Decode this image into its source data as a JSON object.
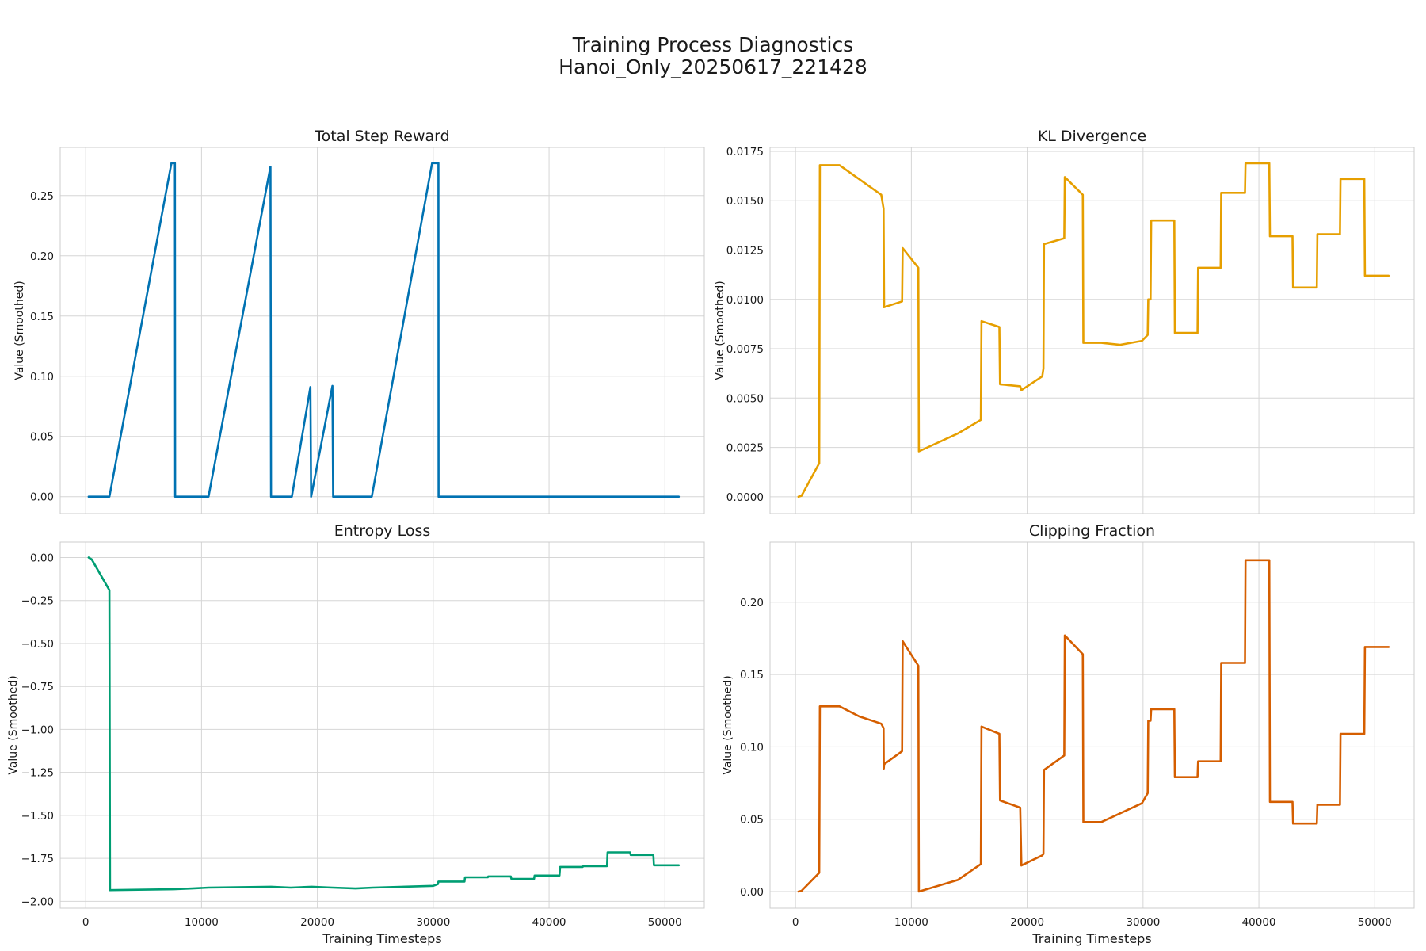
{
  "figure": {
    "title_line1": "Training Process Diagnostics",
    "title_line2": "Hanoi_Only_20250617_221428"
  },
  "chart_data": [
    {
      "type": "line",
      "title": "Total Step Reward",
      "xlabel": "",
      "ylabel": "Value (Smoothed)",
      "xlim": [
        -2200,
        53400
      ],
      "ylim": [
        -0.014,
        0.29
      ],
      "xticks": [
        0,
        10000,
        20000,
        30000,
        40000,
        50000
      ],
      "xtick_labels": [],
      "yticks": [
        0.0,
        0.05,
        0.1,
        0.15,
        0.2,
        0.25
      ],
      "ytick_labels": [
        "0.00",
        "0.05",
        "0.10",
        "0.15",
        "0.20",
        "0.25"
      ],
      "grid": true,
      "color": "#0072b2",
      "series": [
        {
          "x": [
            256,
            2048,
            7400,
            7450,
            7700,
            7720,
            10600,
            15950,
            16000,
            17800,
            19400,
            19460,
            21300,
            21360,
            24700,
            29900,
            29950,
            30450,
            30460,
            51200
          ],
          "y": [
            0,
            0,
            0.277,
            0.277,
            0.277,
            0,
            0,
            0.274,
            0,
            0,
            0.091,
            0,
            0.092,
            0,
            0,
            0.277,
            0.277,
            0.277,
            0,
            0
          ]
        }
      ]
    },
    {
      "type": "line",
      "title": "KL Divergence",
      "xlabel": "",
      "ylabel": "Value (Smoothed)",
      "xlim": [
        -2200,
        53400
      ],
      "ylim": [
        -0.00085,
        0.0177
      ],
      "xticks": [
        0,
        10000,
        20000,
        30000,
        40000,
        50000
      ],
      "xtick_labels": [],
      "yticks": [
        0.0,
        0.0025,
        0.005,
        0.0075,
        0.01,
        0.0125,
        0.015,
        0.0175
      ],
      "ytick_labels": [
        "0.0000",
        "0.0025",
        "0.0050",
        "0.0075",
        "0.0100",
        "0.0125",
        "0.0150",
        "0.0175"
      ],
      "grid": true,
      "color": "#e69f00",
      "series": [
        {
          "x": [
            256,
            512,
            2048,
            2100,
            3800,
            7400,
            7600,
            7650,
            9200,
            9250,
            10600,
            10650,
            14000,
            16000,
            16050,
            17600,
            17650,
            19400,
            19500,
            21300,
            21400,
            21450,
            23200,
            23250,
            24800,
            24850,
            26400,
            28000,
            29900,
            30400,
            30450,
            30650,
            30700,
            32700,
            32750,
            34700,
            34750,
            36700,
            36750,
            38800,
            38850,
            40900,
            40950,
            42900,
            42950,
            45000,
            45050,
            47000,
            47050,
            49100,
            49150,
            51200
          ],
          "y": [
            0,
            5e-05,
            0.0017,
            0.0168,
            0.0168,
            0.0153,
            0.0146,
            0.0096,
            0.0099,
            0.0126,
            0.0116,
            0.0023,
            0.0032,
            0.0039,
            0.0089,
            0.0086,
            0.0057,
            0.0056,
            0.0054,
            0.0061,
            0.0065,
            0.0128,
            0.0131,
            0.0162,
            0.0153,
            0.0078,
            0.0078,
            0.0077,
            0.0079,
            0.0082,
            0.01,
            0.01,
            0.014,
            0.014,
            0.0083,
            0.0083,
            0.0116,
            0.0116,
            0.0154,
            0.0154,
            0.0169,
            0.0169,
            0.0132,
            0.0132,
            0.0106,
            0.0106,
            0.0133,
            0.0133,
            0.0161,
            0.0161,
            0.0112,
            0.0112
          ]
        }
      ]
    },
    {
      "type": "line",
      "title": "Entropy Loss",
      "xlabel": "Training Timesteps",
      "ylabel": "Value (Smoothed)",
      "xlim": [
        -2200,
        53400
      ],
      "ylim": [
        -2.04,
        0.09
      ],
      "xticks": [
        0,
        10000,
        20000,
        30000,
        40000,
        50000
      ],
      "xtick_labels": [
        "0",
        "10000",
        "20000",
        "30000",
        "40000",
        "50000"
      ],
      "yticks": [
        -2.0,
        -1.75,
        -1.5,
        -1.25,
        -1.0,
        -0.75,
        -0.5,
        -0.25,
        0.0
      ],
      "ytick_labels": [
        "−2.00",
        "−1.75",
        "−1.50",
        "−1.25",
        "−1.00",
        "−0.75",
        "−0.50",
        "−0.25",
        "0.00"
      ],
      "grid": true,
      "color": "#009e73",
      "series": [
        {
          "x": [
            256,
            512,
            2048,
            2100,
            7600,
            9200,
            10600,
            16000,
            17700,
            19500,
            21300,
            23300,
            24800,
            30000,
            30400,
            30450,
            32700,
            32750,
            34700,
            34750,
            36700,
            36750,
            38700,
            38750,
            40900,
            40950,
            42900,
            42950,
            45000,
            45050,
            47000,
            47050,
            49000,
            49050,
            51200
          ],
          "y": [
            0,
            -0.01,
            -0.19,
            -1.935,
            -1.93,
            -1.925,
            -1.92,
            -1.915,
            -1.92,
            -1.915,
            -1.92,
            -1.925,
            -1.92,
            -1.91,
            -1.9,
            -1.885,
            -1.885,
            -1.86,
            -1.86,
            -1.855,
            -1.855,
            -1.87,
            -1.87,
            -1.85,
            -1.85,
            -1.8,
            -1.8,
            -1.795,
            -1.795,
            -1.715,
            -1.715,
            -1.73,
            -1.73,
            -1.79,
            -1.79
          ]
        }
      ]
    },
    {
      "type": "line",
      "title": "Clipping Fraction",
      "xlabel": "Training Timesteps",
      "ylabel": "Value (Smoothed)",
      "xlim": [
        -2200,
        53400
      ],
      "ylim": [
        -0.0115,
        0.2415
      ],
      "xticks": [
        0,
        10000,
        20000,
        30000,
        40000,
        50000
      ],
      "xtick_labels": [
        "0",
        "10000",
        "20000",
        "30000",
        "40000",
        "50000"
      ],
      "yticks": [
        0.0,
        0.05,
        0.1,
        0.15,
        0.2
      ],
      "ytick_labels": [
        "0.00",
        "0.05",
        "0.10",
        "0.15",
        "0.20"
      ],
      "grid": true,
      "color": "#d55e00",
      "series": [
        {
          "x": [
            256,
            512,
            2048,
            2100,
            3800,
            5500,
            7400,
            7600,
            7620,
            7650,
            9200,
            9250,
            10600,
            10650,
            14000,
            16000,
            16050,
            17600,
            17650,
            19400,
            19500,
            21300,
            21400,
            21450,
            23200,
            23250,
            24800,
            24850,
            26400,
            28000,
            29900,
            30400,
            30450,
            30650,
            30700,
            32700,
            32750,
            34700,
            34750,
            36700,
            36750,
            38800,
            38850,
            40900,
            40950,
            42900,
            42950,
            45000,
            45050,
            47000,
            47050,
            49100,
            49150,
            51200
          ],
          "y": [
            0,
            0.0005,
            0.013,
            0.128,
            0.128,
            0.121,
            0.116,
            0.113,
            0.085,
            0.088,
            0.097,
            0.173,
            0.156,
            0,
            0.008,
            0.019,
            0.114,
            0.109,
            0.063,
            0.058,
            0.018,
            0.025,
            0.026,
            0.084,
            0.094,
            0.177,
            0.164,
            0.048,
            0.048,
            0.054,
            0.061,
            0.068,
            0.118,
            0.118,
            0.126,
            0.126,
            0.079,
            0.079,
            0.09,
            0.09,
            0.158,
            0.158,
            0.229,
            0.229,
            0.062,
            0.062,
            0.047,
            0.047,
            0.06,
            0.06,
            0.109,
            0.109,
            0.169,
            0.169
          ]
        }
      ]
    }
  ]
}
